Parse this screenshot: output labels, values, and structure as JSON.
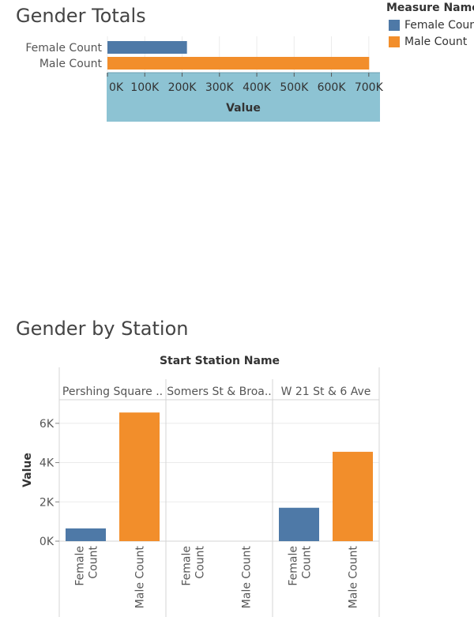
{
  "colors": {
    "female": "#4e79a7",
    "male": "#f28e2b",
    "axis_highlight": "#8dc3d3",
    "grid": "#ebebeb",
    "pane_border": "#d4d4d4"
  },
  "legend": {
    "title": "Measure Names",
    "items": [
      {
        "label": "Female Count",
        "color": "#4e79a7"
      },
      {
        "label": "Male Count",
        "color": "#f28e2b"
      }
    ]
  },
  "chart_data": [
    {
      "type": "bar",
      "orientation": "horizontal",
      "title": "Gender Totals",
      "categories": [
        "Female Count",
        "Male Count"
      ],
      "values": [
        213000,
        701000
      ],
      "xlabel": "Value",
      "xlim": [
        0,
        730000
      ],
      "ticks": [
        0,
        100000,
        200000,
        300000,
        400000,
        500000,
        600000,
        700000
      ],
      "tick_labels": [
        "0K",
        "100K",
        "200K",
        "300K",
        "400K",
        "500K",
        "600K",
        "700K"
      ],
      "grid": true
    },
    {
      "type": "bar",
      "title": "Gender by Station",
      "column_header": "Start Station Name",
      "ylabel": "Value",
      "ylim": [
        0,
        7200
      ],
      "ticks": [
        0,
        2000,
        4000,
        6000
      ],
      "tick_labels": [
        "0K",
        "2K",
        "4K",
        "6K"
      ],
      "stations": [
        "Pershing Square ..",
        "Somers St & Broa..",
        "W 21 St & 6 Ave"
      ],
      "categories": [
        "Female Count",
        "Male Count"
      ],
      "category_labels": [
        [
          "Female",
          "Count"
        ],
        [
          "Male Count"
        ]
      ],
      "values": [
        [
          650,
          6550
        ],
        [
          0,
          0
        ],
        [
          1700,
          4550
        ]
      ],
      "grid": true
    }
  ]
}
